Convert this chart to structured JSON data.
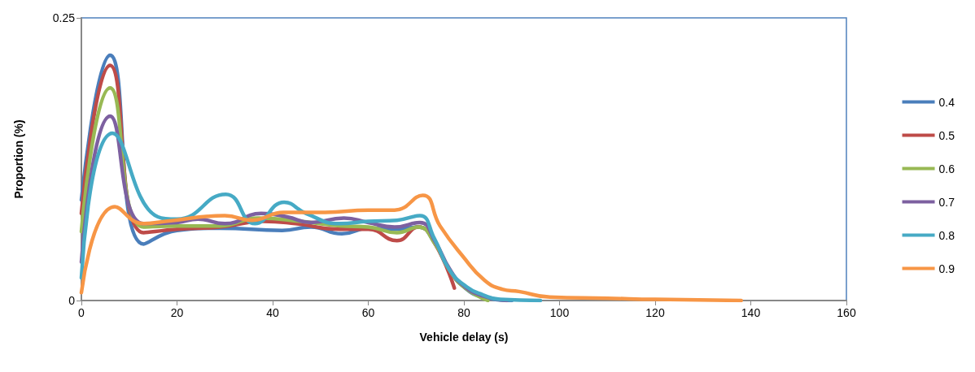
{
  "chart_data": {
    "type": "line",
    "xlabel": "Vehicle delay (s)",
    "ylabel": "Proportion (%)",
    "xlim": [
      0,
      160
    ],
    "xticks": [
      0,
      20,
      40,
      60,
      80,
      100,
      120,
      140,
      160
    ],
    "ylim": [
      0,
      0.25
    ],
    "yticks": [
      0,
      0.25
    ],
    "grid": false,
    "legend": "right",
    "marker": "none",
    "line_style": "solid",
    "series": [
      {
        "name": "0.4",
        "color": "#4a7ebb",
        "x": [
          0,
          6,
          13,
          20,
          29,
          42,
          48,
          54.5,
          60,
          65.5,
          70.5,
          74,
          77,
          80,
          84,
          90
        ],
        "values": [
          0.089,
          0.217,
          0.05,
          0.062,
          0.064,
          0.062,
          0.065,
          0.059,
          0.064,
          0.063,
          0.065,
          0.05,
          0.027,
          0.012,
          0.003,
          0
        ]
      },
      {
        "name": "0.5",
        "color": "#be4b48",
        "x": [
          0,
          6,
          13,
          20,
          29,
          38,
          44.8,
          54,
          60,
          66,
          70.5,
          74,
          78
        ],
        "values": [
          0.077,
          0.208,
          0.06,
          0.063,
          0.065,
          0.07,
          0.068,
          0.063,
          0.063,
          0.053,
          0.065,
          0.05,
          0.011
        ]
      },
      {
        "name": "0.6",
        "color": "#98b954",
        "x": [
          0,
          6,
          13,
          20,
          29,
          37,
          46,
          54,
          60,
          66,
          70.5,
          74,
          77,
          80,
          85
        ],
        "values": [
          0.061,
          0.188,
          0.065,
          0.066,
          0.066,
          0.073,
          0.07,
          0.066,
          0.065,
          0.06,
          0.065,
          0.05,
          0.027,
          0.012,
          0
        ]
      },
      {
        "name": "0.7",
        "color": "#7d60a0",
        "x": [
          0,
          6,
          13,
          20,
          24.4,
          30,
          37.6,
          43,
          48,
          54.9,
          60,
          65.5,
          70.8,
          74,
          77,
          80,
          84,
          89
        ],
        "values": [
          0.034,
          0.163,
          0.068,
          0.069,
          0.072,
          0.068,
          0.077,
          0.074,
          0.069,
          0.073,
          0.069,
          0.065,
          0.069,
          0.052,
          0.028,
          0.013,
          0.004,
          0
        ]
      },
      {
        "name": "0.8",
        "color": "#46aac5",
        "x": [
          0,
          6.5,
          16,
          20,
          30.2,
          36.3,
          42.4,
          47,
          54,
          60,
          66,
          70.8,
          73.8,
          77,
          80.6,
          84,
          87.5,
          96
        ],
        "values": [
          0.02,
          0.148,
          0.074,
          0.072,
          0.094,
          0.068,
          0.087,
          0.077,
          0.068,
          0.07,
          0.071,
          0.075,
          0.055,
          0.027,
          0.012,
          0.005,
          0.001,
          0
        ]
      },
      {
        "name": "0.9",
        "color": "#f79646",
        "x": [
          0,
          7,
          13,
          17.6,
          30,
          35.7,
          42.3,
          51,
          60,
          65.5,
          71.4,
          75,
          79.8,
          84.3,
          88,
          91.5,
          98,
          110,
          120,
          138
        ],
        "values": [
          0.007,
          0.083,
          0.068,
          0.07,
          0.075,
          0.071,
          0.078,
          0.078,
          0.08,
          0.08,
          0.093,
          0.066,
          0.039,
          0.018,
          0.01,
          0.008,
          0.003,
          0.002,
          0.001,
          0
        ]
      }
    ]
  }
}
